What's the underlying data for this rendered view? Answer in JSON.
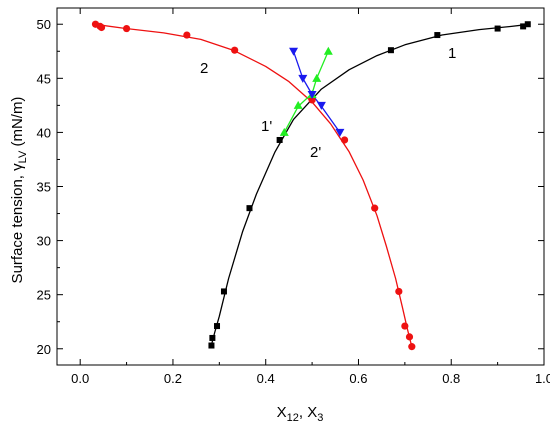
{
  "chart_data": {
    "type": "scatter",
    "title": "",
    "xlabel": {
      "main": "X",
      "sub1": "12",
      "sep": ", X",
      "sub2": "3"
    },
    "ylabel": {
      "main": "Surface tension, γ",
      "sub": "LV",
      "unit": " (mN/m)"
    },
    "xlim": [
      -0.05,
      1.0
    ],
    "ylim": [
      18.5,
      51.5
    ],
    "xticks": [
      0.0,
      0.2,
      0.4,
      0.6,
      0.8,
      1.0
    ],
    "xtick_labels": [
      "0.0",
      "0.2",
      "0.4",
      "0.6",
      "0.8",
      "1.0"
    ],
    "yticks": [
      20,
      25,
      30,
      35,
      40,
      45,
      50
    ],
    "ytick_labels": [
      "20",
      "25",
      "30",
      "35",
      "40",
      "45",
      "50"
    ],
    "grid": false,
    "series": [
      {
        "id": "1",
        "marker": "square",
        "color": "#000000",
        "line_color": "#000000",
        "label": "1",
        "points": [
          [
            0.283,
            20.3
          ],
          [
            0.285,
            21.0
          ],
          [
            0.295,
            22.1
          ],
          [
            0.31,
            25.3
          ],
          [
            0.365,
            33.0
          ],
          [
            0.43,
            39.3
          ],
          [
            0.67,
            47.6
          ],
          [
            0.77,
            49.0
          ],
          [
            0.9,
            49.6
          ],
          [
            0.955,
            49.8
          ],
          [
            0.965,
            50.0
          ]
        ],
        "curve": [
          [
            0.282,
            20.2
          ],
          [
            0.29,
            21.5
          ],
          [
            0.3,
            23.0
          ],
          [
            0.32,
            26.5
          ],
          [
            0.35,
            30.8
          ],
          [
            0.38,
            34.3
          ],
          [
            0.42,
            38.2
          ],
          [
            0.46,
            41.2
          ],
          [
            0.52,
            44.0
          ],
          [
            0.58,
            45.8
          ],
          [
            0.64,
            47.1
          ],
          [
            0.7,
            48.1
          ],
          [
            0.78,
            49.0
          ],
          [
            0.86,
            49.5
          ],
          [
            0.93,
            49.8
          ],
          [
            0.97,
            50.0
          ]
        ]
      },
      {
        "id": "2",
        "marker": "circle",
        "color": "#ee1111",
        "line_color": "#ee1111",
        "label": "2",
        "points": [
          [
            0.033,
            50.0
          ],
          [
            0.043,
            49.8
          ],
          [
            0.046,
            49.7
          ],
          [
            0.1,
            49.6
          ],
          [
            0.23,
            49.0
          ],
          [
            0.333,
            47.6
          ],
          [
            0.5,
            43.0
          ],
          [
            0.57,
            39.3
          ],
          [
            0.635,
            33.0
          ],
          [
            0.687,
            25.3
          ],
          [
            0.7,
            22.1
          ],
          [
            0.71,
            21.1
          ],
          [
            0.715,
            20.2
          ]
        ],
        "curve": [
          [
            0.03,
            50.0
          ],
          [
            0.1,
            49.6
          ],
          [
            0.18,
            49.2
          ],
          [
            0.26,
            48.6
          ],
          [
            0.33,
            47.6
          ],
          [
            0.4,
            46.1
          ],
          [
            0.45,
            44.7
          ],
          [
            0.5,
            42.8
          ],
          [
            0.54,
            40.8
          ],
          [
            0.58,
            38.2
          ],
          [
            0.61,
            35.6
          ],
          [
            0.64,
            32.3
          ],
          [
            0.66,
            29.5
          ],
          [
            0.68,
            26.5
          ],
          [
            0.695,
            23.8
          ],
          [
            0.705,
            21.9
          ],
          [
            0.715,
            20.2
          ]
        ]
      },
      {
        "id": "1'",
        "marker": "triangle-up",
        "color": "#22ee22",
        "line_color": "#22ee22",
        "label": "1'",
        "points": [
          [
            0.44,
            40.0
          ],
          [
            0.47,
            42.5
          ],
          [
            0.5,
            43.5
          ],
          [
            0.51,
            45.0
          ],
          [
            0.535,
            47.5
          ]
        ],
        "curve": [
          [
            0.44,
            40.0
          ],
          [
            0.47,
            42.4
          ],
          [
            0.5,
            43.6
          ],
          [
            0.51,
            45.0
          ],
          [
            0.535,
            47.5
          ]
        ]
      },
      {
        "id": "2'",
        "marker": "triangle-down",
        "color": "#1a1aee",
        "line_color": "#1a1aee",
        "label": "2'",
        "points": [
          [
            0.46,
            47.5
          ],
          [
            0.48,
            45.0
          ],
          [
            0.5,
            43.5
          ],
          [
            0.52,
            42.5
          ],
          [
            0.56,
            40.0
          ]
        ],
        "curve": [
          [
            0.46,
            47.5
          ],
          [
            0.48,
            45.0
          ],
          [
            0.5,
            43.5
          ],
          [
            0.52,
            42.4
          ],
          [
            0.56,
            40.0
          ]
        ]
      }
    ]
  }
}
